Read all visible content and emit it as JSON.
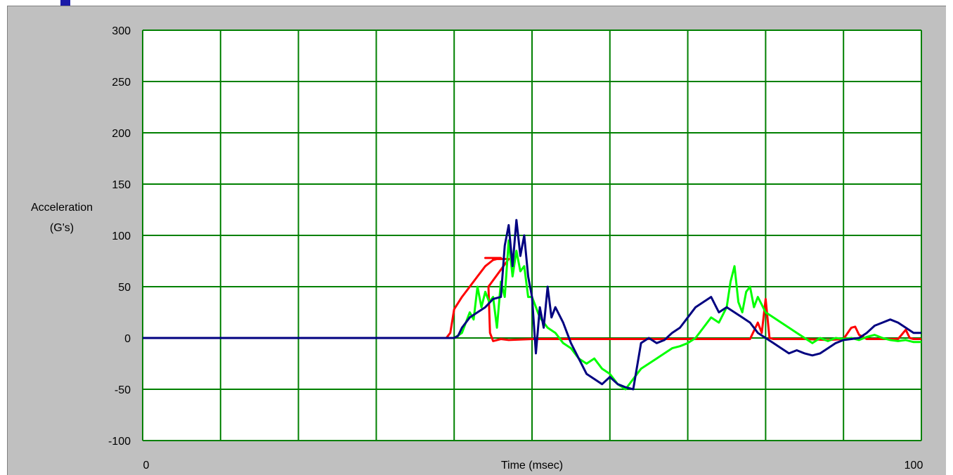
{
  "colors": {
    "panel_background": "#c0c0c0",
    "plot_background": "#ffffff",
    "grid": "#008000",
    "series_red": "#ff0000",
    "series_green": "#00ff00",
    "series_blue": "#000080",
    "marker": "#1a1aa8"
  },
  "chart_data": {
    "type": "line",
    "xlabel": "Time (msec)",
    "ylabel_lines": [
      "Acceleration",
      "(G's)"
    ],
    "xlim": [
      0,
      100
    ],
    "ylim": [
      -100,
      300
    ],
    "x_tick_labels": [
      "0",
      "100"
    ],
    "y_ticks": [
      300,
      250,
      200,
      150,
      100,
      50,
      0,
      -50,
      -100
    ],
    "grid": true,
    "x_grid_lines": 10,
    "series": [
      {
        "color": "#ff0000",
        "points": [
          [
            0,
            0
          ],
          [
            39,
            0
          ],
          [
            39.5,
            5
          ],
          [
            40,
            28
          ],
          [
            41,
            40
          ],
          [
            42,
            50
          ],
          [
            43,
            60
          ],
          [
            44,
            70
          ],
          [
            45,
            76
          ],
          [
            46,
            78
          ],
          [
            44,
            78
          ],
          [
            45,
            78
          ],
          [
            45,
            77
          ],
          [
            47,
            77
          ],
          [
            44.4,
            50
          ],
          [
            44.6,
            5
          ],
          [
            45,
            -3
          ],
          [
            46,
            -1
          ],
          [
            47,
            -2
          ],
          [
            50,
            -1
          ],
          [
            55,
            -1
          ],
          [
            60,
            -1
          ],
          [
            65,
            -1
          ],
          [
            70,
            -1
          ],
          [
            75,
            -1
          ],
          [
            78,
            -1
          ],
          [
            79,
            15
          ],
          [
            79.5,
            5
          ],
          [
            80,
            38
          ],
          [
            80.5,
            0
          ],
          [
            81,
            -1
          ],
          [
            85,
            -1
          ],
          [
            88,
            -2
          ],
          [
            90,
            -1
          ],
          [
            91,
            10
          ],
          [
            91.5,
            11
          ],
          [
            92,
            3
          ],
          [
            93,
            -1
          ],
          [
            95,
            -1
          ],
          [
            97,
            -1
          ],
          [
            98,
            8
          ],
          [
            98.5,
            0
          ],
          [
            99,
            -1
          ],
          [
            100,
            -1
          ]
        ]
      },
      {
        "color": "#00ff00",
        "points": [
          [
            0,
            0
          ],
          [
            40,
            0
          ],
          [
            41,
            5
          ],
          [
            42,
            25
          ],
          [
            42.5,
            18
          ],
          [
            43,
            50
          ],
          [
            43.5,
            30
          ],
          [
            44,
            45
          ],
          [
            44.5,
            35
          ],
          [
            45,
            40
          ],
          [
            45.5,
            10
          ],
          [
            46,
            55
          ],
          [
            46.5,
            40
          ],
          [
            47,
            95
          ],
          [
            47.5,
            60
          ],
          [
            48,
            85
          ],
          [
            48.5,
            65
          ],
          [
            49,
            70
          ],
          [
            49.5,
            40
          ],
          [
            50,
            40
          ],
          [
            51,
            20
          ],
          [
            52,
            10
          ],
          [
            53,
            5
          ],
          [
            54,
            -5
          ],
          [
            55,
            -10
          ],
          [
            56,
            -20
          ],
          [
            57,
            -25
          ],
          [
            58,
            -20
          ],
          [
            59,
            -30
          ],
          [
            60,
            -35
          ],
          [
            61,
            -45
          ],
          [
            62,
            -50
          ],
          [
            63,
            -40
          ],
          [
            64,
            -30
          ],
          [
            65,
            -25
          ],
          [
            66,
            -20
          ],
          [
            67,
            -15
          ],
          [
            68,
            -10
          ],
          [
            69,
            -8
          ],
          [
            70,
            -5
          ],
          [
            71,
            0
          ],
          [
            72,
            10
          ],
          [
            73,
            20
          ],
          [
            74,
            15
          ],
          [
            75,
            30
          ],
          [
            75.5,
            55
          ],
          [
            76,
            70
          ],
          [
            76.5,
            35
          ],
          [
            77,
            25
          ],
          [
            77.5,
            45
          ],
          [
            78,
            50
          ],
          [
            78.5,
            30
          ],
          [
            79,
            40
          ],
          [
            80,
            25
          ],
          [
            81,
            20
          ],
          [
            82,
            15
          ],
          [
            83,
            10
          ],
          [
            84,
            5
          ],
          [
            85,
            0
          ],
          [
            86,
            -5
          ],
          [
            87,
            0
          ],
          [
            88,
            -3
          ],
          [
            89,
            0
          ],
          [
            90,
            -1
          ],
          [
            91,
            0
          ],
          [
            92,
            -2
          ],
          [
            93,
            1
          ],
          [
            94,
            3
          ],
          [
            95,
            0
          ],
          [
            96,
            -2
          ],
          [
            97,
            -3
          ],
          [
            98,
            -2
          ],
          [
            99,
            -4
          ],
          [
            100,
            -4
          ]
        ]
      },
      {
        "color": "#000080",
        "points": [
          [
            0,
            0
          ],
          [
            40,
            0
          ],
          [
            40.5,
            2
          ],
          [
            41,
            10
          ],
          [
            42,
            20
          ],
          [
            43,
            25
          ],
          [
            44,
            30
          ],
          [
            45,
            38
          ],
          [
            46,
            40
          ],
          [
            46.5,
            90
          ],
          [
            47,
            110
          ],
          [
            47.5,
            70
          ],
          [
            48,
            115
          ],
          [
            48.5,
            80
          ],
          [
            49,
            100
          ],
          [
            49.5,
            60
          ],
          [
            50,
            40
          ],
          [
            50.5,
            -15
          ],
          [
            51,
            30
          ],
          [
            51.5,
            10
          ],
          [
            52,
            50
          ],
          [
            52.5,
            20
          ],
          [
            53,
            30
          ],
          [
            54,
            15
          ],
          [
            55,
            -5
          ],
          [
            56,
            -20
          ],
          [
            57,
            -35
          ],
          [
            58,
            -40
          ],
          [
            59,
            -45
          ],
          [
            60,
            -38
          ],
          [
            61,
            -45
          ],
          [
            62,
            -48
          ],
          [
            63,
            -50
          ],
          [
            64,
            -5
          ],
          [
            65,
            0
          ],
          [
            66,
            -5
          ],
          [
            67,
            -2
          ],
          [
            68,
            5
          ],
          [
            69,
            10
          ],
          [
            70,
            20
          ],
          [
            71,
            30
          ],
          [
            72,
            35
          ],
          [
            73,
            40
          ],
          [
            74,
            25
          ],
          [
            75,
            30
          ],
          [
            76,
            25
          ],
          [
            77,
            20
          ],
          [
            78,
            15
          ],
          [
            79,
            5
          ],
          [
            80,
            0
          ],
          [
            81,
            -5
          ],
          [
            82,
            -10
          ],
          [
            83,
            -15
          ],
          [
            84,
            -12
          ],
          [
            85,
            -15
          ],
          [
            86,
            -17
          ],
          [
            87,
            -15
          ],
          [
            88,
            -10
          ],
          [
            89,
            -5
          ],
          [
            90,
            -2
          ],
          [
            91,
            -1
          ],
          [
            92,
            0
          ],
          [
            93,
            5
          ],
          [
            94,
            12
          ],
          [
            95,
            15
          ],
          [
            96,
            18
          ],
          [
            97,
            15
          ],
          [
            98,
            10
          ],
          [
            99,
            5
          ],
          [
            100,
            5
          ]
        ]
      }
    ]
  }
}
